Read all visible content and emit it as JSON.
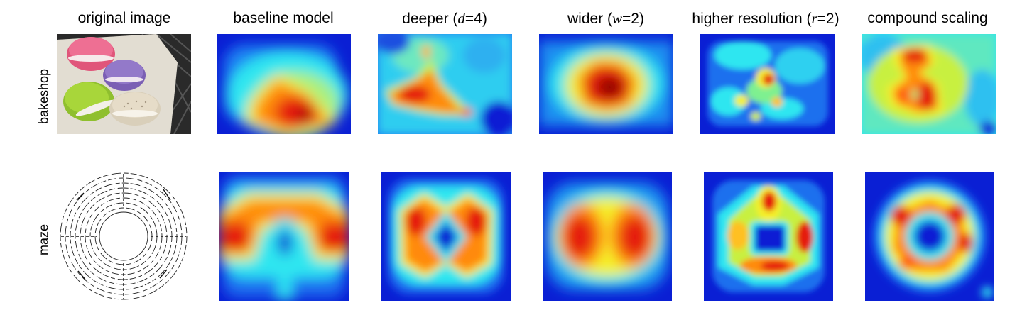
{
  "columns": [
    {
      "title": "original image"
    },
    {
      "title": "baseline model"
    },
    {
      "title_prefix": "deeper (",
      "var": "d",
      "title_suffix": "=4)"
    },
    {
      "title_prefix": "wider (",
      "var": "w",
      "title_suffix": "=2)"
    },
    {
      "title_prefix": "higher resolution (",
      "var": "r",
      "title_suffix": "=2)"
    },
    {
      "title": "compound scaling"
    }
  ],
  "rows": [
    {
      "label": "bakeshop"
    },
    {
      "label": "maze"
    }
  ],
  "colors": {
    "heat_low": "#0a1fd4",
    "heat_cyan": "#2ee6f0",
    "heat_yellow": "#f5f02a",
    "heat_orange": "#ff8a10",
    "heat_red": "#e51a0a",
    "heat_dark": "#8a0000"
  }
}
